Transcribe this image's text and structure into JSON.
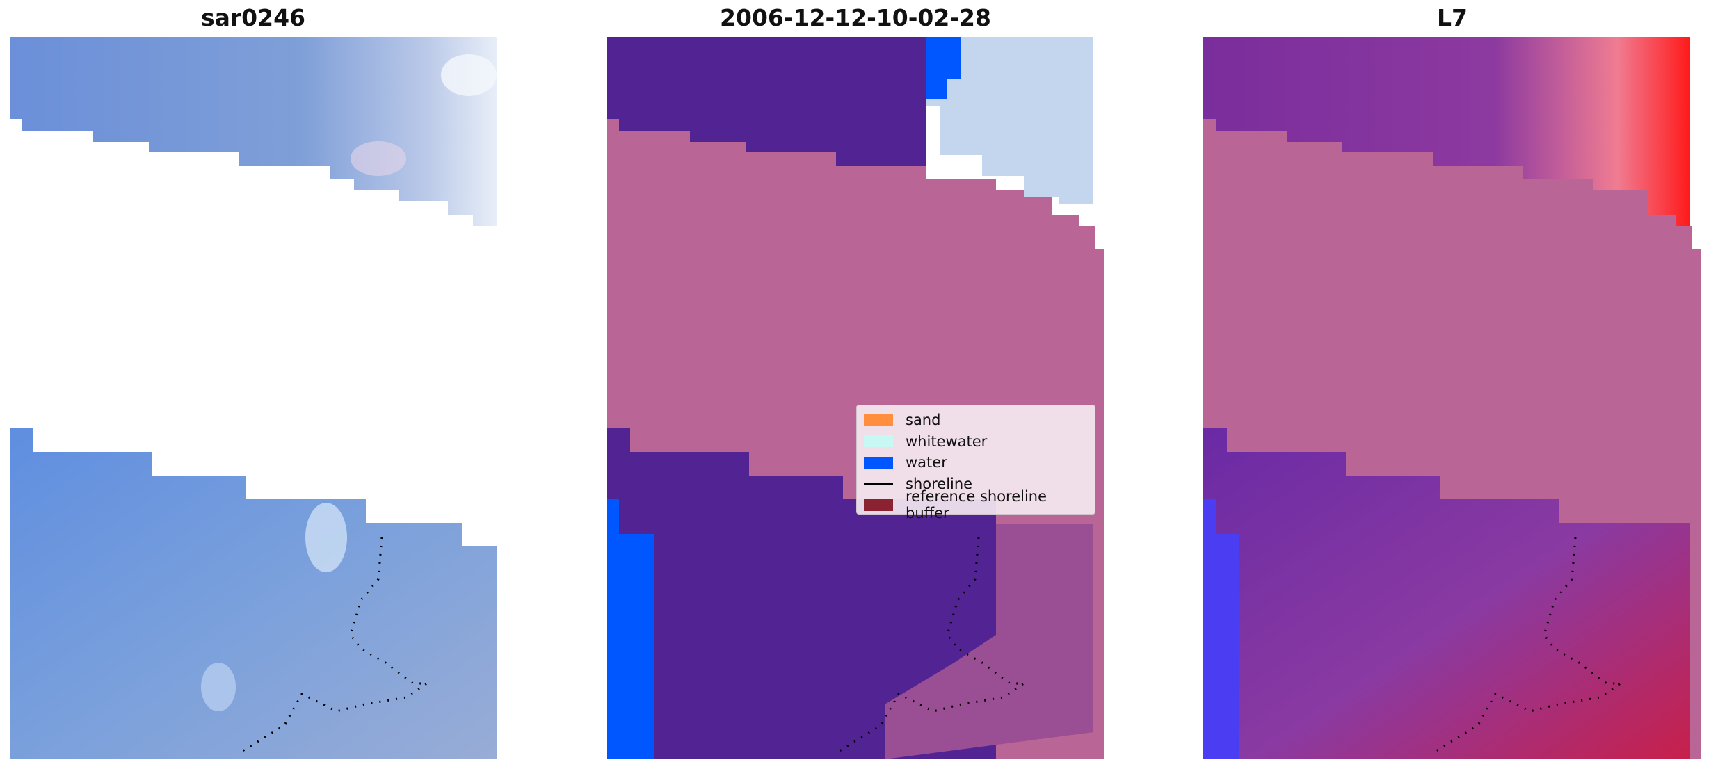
{
  "panels": [
    {
      "title": "sar0246"
    },
    {
      "title": "2006-12-12-10-02-28"
    },
    {
      "title": "L7"
    }
  ],
  "legend": {
    "items": [
      {
        "label": "sand",
        "kind": "patch",
        "color": "#ff8f3f"
      },
      {
        "label": "whitewater",
        "kind": "patch",
        "color": "#c8f8f4"
      },
      {
        "label": "water",
        "kind": "patch",
        "color": "#0057ff"
      },
      {
        "label": "shoreline",
        "kind": "line",
        "color": "#000000"
      },
      {
        "label": "reference shoreline buffer",
        "kind": "patch",
        "color": "#8b2232"
      }
    ]
  },
  "colors": {
    "rgb_blue": "#6f93d8",
    "sand_purple_class": "#512393",
    "buffer_pink": "#b96595",
    "water_blue": "#0057ff",
    "ir_red": "#ff1a1a",
    "ir_purple": "#7a2d9c"
  }
}
